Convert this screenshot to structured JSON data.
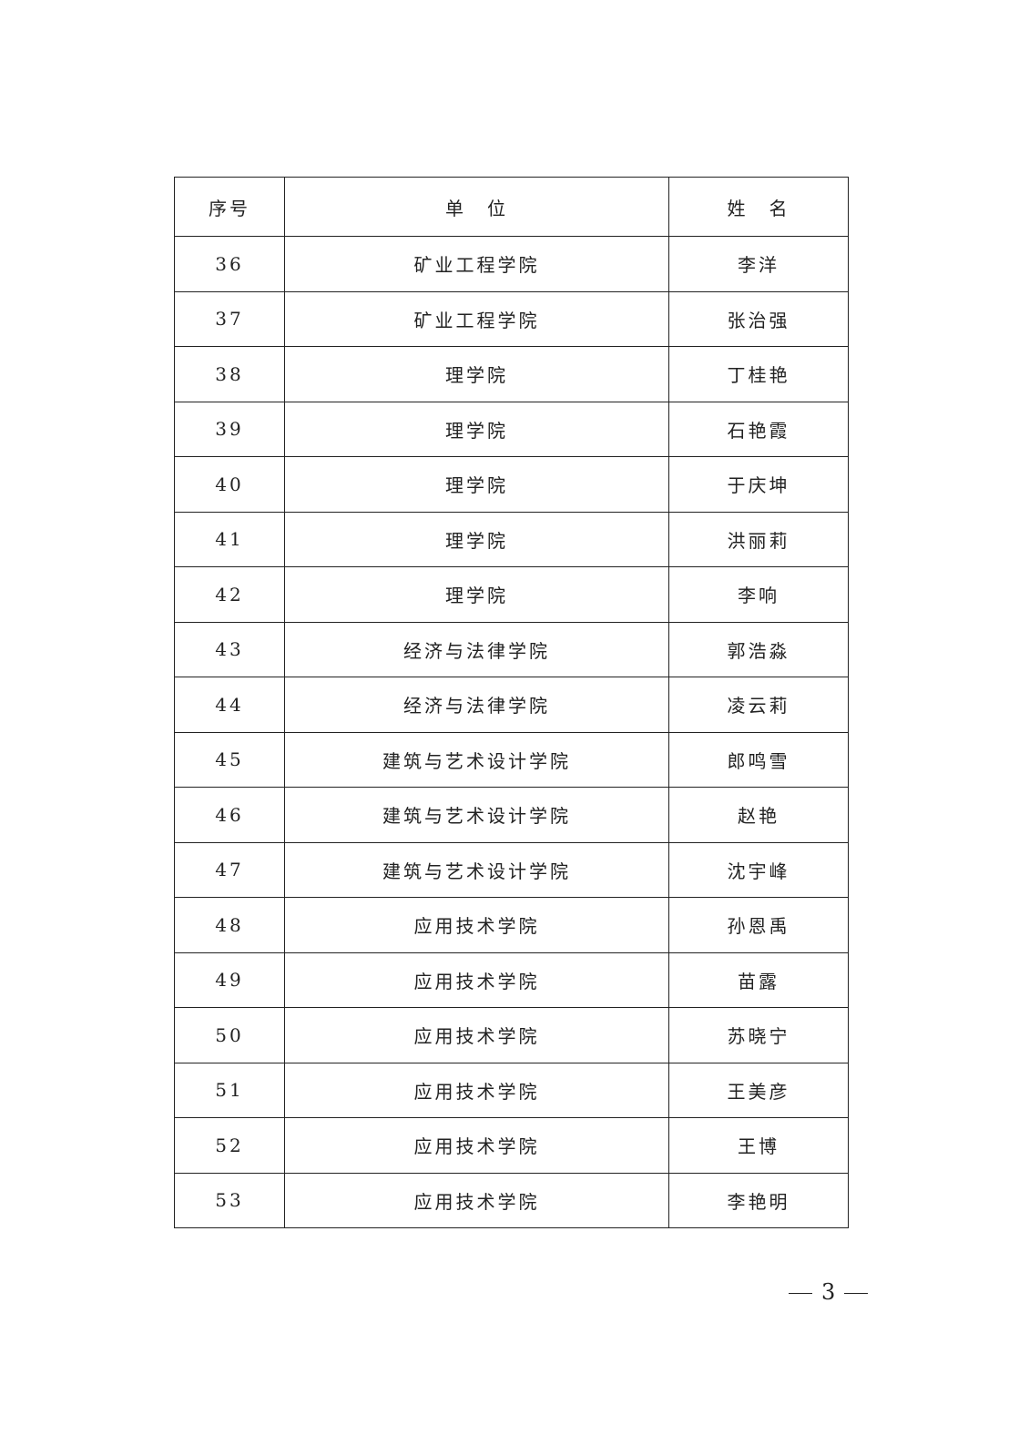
{
  "table": {
    "headers": [
      "序号",
      "单　位",
      "姓　名"
    ],
    "rows": [
      [
        "36",
        "矿业工程学院",
        "李洋"
      ],
      [
        "37",
        "矿业工程学院",
        "张治强"
      ],
      [
        "38",
        "理学院",
        "丁桂艳"
      ],
      [
        "39",
        "理学院",
        "石艳霞"
      ],
      [
        "40",
        "理学院",
        "于庆坤"
      ],
      [
        "41",
        "理学院",
        "洪丽莉"
      ],
      [
        "42",
        "理学院",
        "李响"
      ],
      [
        "43",
        "经济与法律学院",
        "郭浩淼"
      ],
      [
        "44",
        "经济与法律学院",
        "凌云莉"
      ],
      [
        "45",
        "建筑与艺术设计学院",
        "郎鸣雪"
      ],
      [
        "46",
        "建筑与艺术设计学院",
        "赵艳"
      ],
      [
        "47",
        "建筑与艺术设计学院",
        "沈宇峰"
      ],
      [
        "48",
        "应用技术学院",
        "孙恩禹"
      ],
      [
        "49",
        "应用技术学院",
        "苗露"
      ],
      [
        "50",
        "应用技术学院",
        "苏晓宁"
      ],
      [
        "51",
        "应用技术学院",
        "王美彦"
      ],
      [
        "52",
        "应用技术学院",
        "王博"
      ],
      [
        "53",
        "应用技术学院",
        "李艳明"
      ]
    ]
  },
  "footer": {
    "page_number": "3"
  }
}
